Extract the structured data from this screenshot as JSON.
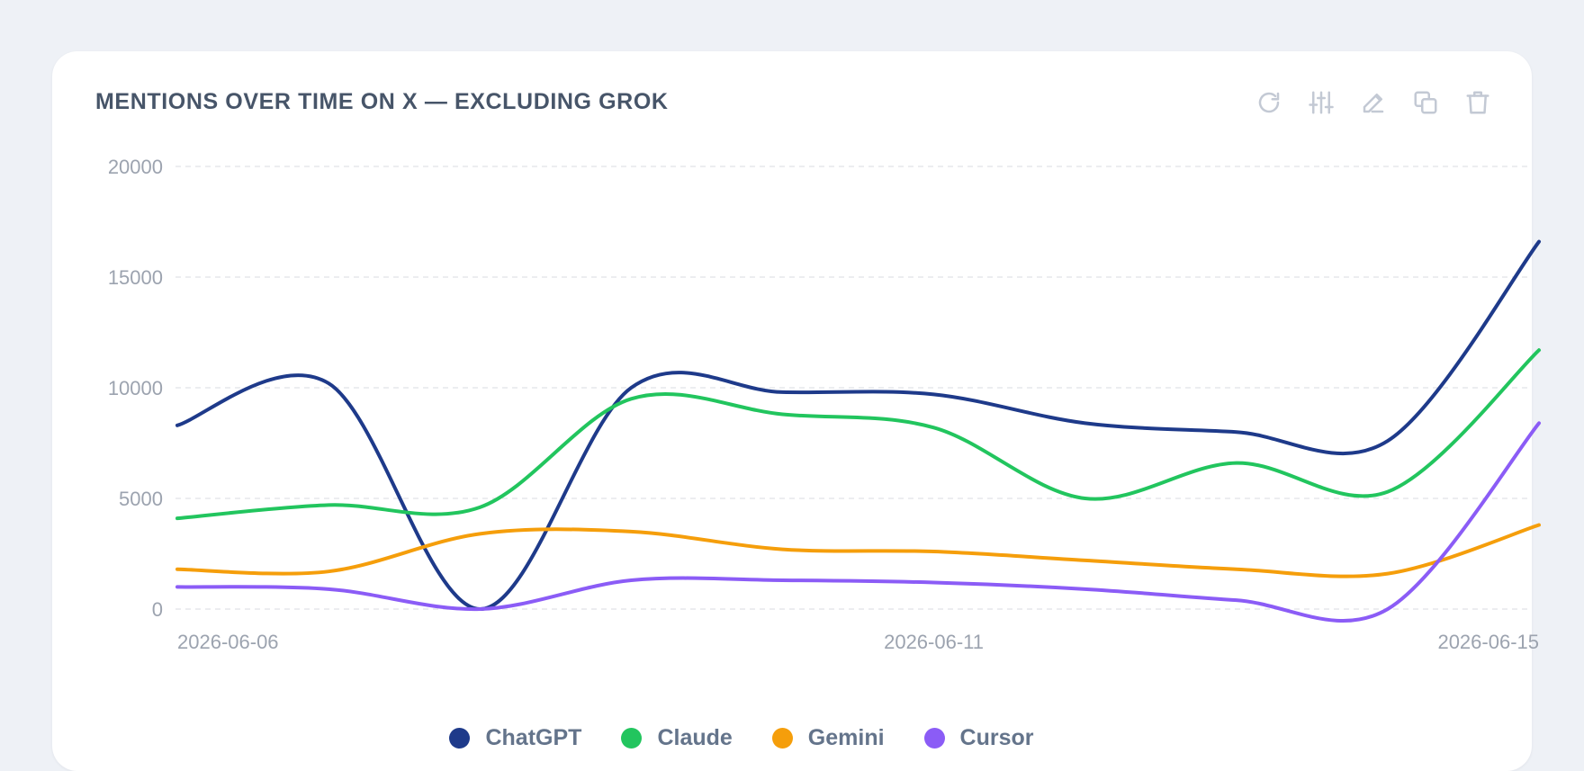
{
  "card": {
    "title": "MENTIONS OVER TIME ON X — EXCLUDING GROK"
  },
  "toolbar": [
    {
      "icon": "refresh-icon"
    },
    {
      "icon": "sliders-icon"
    },
    {
      "icon": "pencil-icon"
    },
    {
      "icon": "copy-icon"
    },
    {
      "icon": "trash-icon"
    }
  ],
  "chart_data": {
    "type": "line",
    "title": "MENTIONS OVER TIME ON X — EXCLUDING GROK",
    "xlabel": "",
    "ylabel": "",
    "x": [
      "2026-06-06",
      "2026-06-07",
      "2026-06-08",
      "2026-06-09",
      "2026-06-10",
      "2026-06-11",
      "2026-06-12",
      "2026-06-13",
      "2026-06-14",
      "2026-06-15"
    ],
    "x_tick_labels": [
      "2026-06-06",
      "2026-06-11",
      "2026-06-15"
    ],
    "ylim": [
      0,
      20000
    ],
    "y_ticks": [
      0,
      5000,
      10000,
      15000,
      20000
    ],
    "grid": "horizontal dashed",
    "legend": "bottom-center",
    "series": [
      {
        "name": "ChatGPT",
        "color": "#1e3a8a",
        "values": [
          8300,
          10200,
          0,
          10000,
          9800,
          9700,
          8400,
          8000,
          7600,
          16600
        ]
      },
      {
        "name": "Claude",
        "color": "#22c55e",
        "values": [
          4100,
          4700,
          4600,
          9500,
          8800,
          8200,
          5000,
          6600,
          5300,
          11700
        ]
      },
      {
        "name": "Gemini",
        "color": "#f59e0b",
        "values": [
          1800,
          1700,
          3400,
          3500,
          2700,
          2600,
          2200,
          1800,
          1600,
          3800
        ]
      },
      {
        "name": "Cursor",
        "color": "#8b5cf6",
        "values": [
          1000,
          900,
          0,
          1300,
          1300,
          1200,
          900,
          400,
          0,
          8400
        ]
      }
    ]
  }
}
